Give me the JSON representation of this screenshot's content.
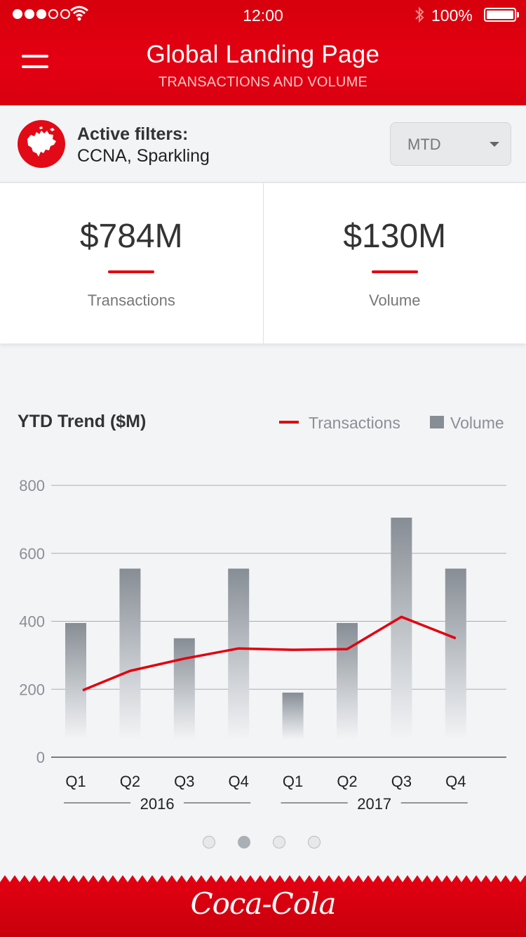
{
  "status": {
    "time": "12:00",
    "battery": "100%"
  },
  "header": {
    "title": "Global Landing Page",
    "subtitle": "TRANSACTIONS AND VOLUME"
  },
  "filters": {
    "label": "Active filters:",
    "value": "CCNA, Sparkling",
    "period": "MTD"
  },
  "kpis": [
    {
      "value": "$784M",
      "label": "Transactions"
    },
    {
      "value": "$130M",
      "label": "Volume"
    }
  ],
  "chart_title": "YTD Trend ($M)",
  "legend": {
    "transactions": "Transactions",
    "volume": "Volume"
  },
  "colors": {
    "brand_red": "#e1000f",
    "bar_gray": "#868d94"
  },
  "chart_data": {
    "type": "bar",
    "title": "YTD Trend ($M)",
    "categories": [
      "Q1",
      "Q2",
      "Q3",
      "Q4",
      "Q1",
      "Q2",
      "Q3",
      "Q4"
    ],
    "groups": [
      {
        "label": "2016",
        "count": 4
      },
      {
        "label": "2017",
        "count": 4
      }
    ],
    "series": [
      {
        "name": "Volume",
        "type": "bar",
        "values": [
          395,
          555,
          350,
          555,
          190,
          395,
          705,
          555
        ]
      },
      {
        "name": "Transactions",
        "type": "line",
        "values": [
          197,
          254,
          290,
          320,
          316,
          318,
          413,
          350
        ]
      }
    ],
    "yticks": [
      0,
      200,
      400,
      600,
      800
    ],
    "ylim": [
      0,
      800
    ],
    "grid": true
  },
  "pager": {
    "count": 4,
    "active": 1
  },
  "footer": {
    "brand": "Coca-Cola"
  }
}
